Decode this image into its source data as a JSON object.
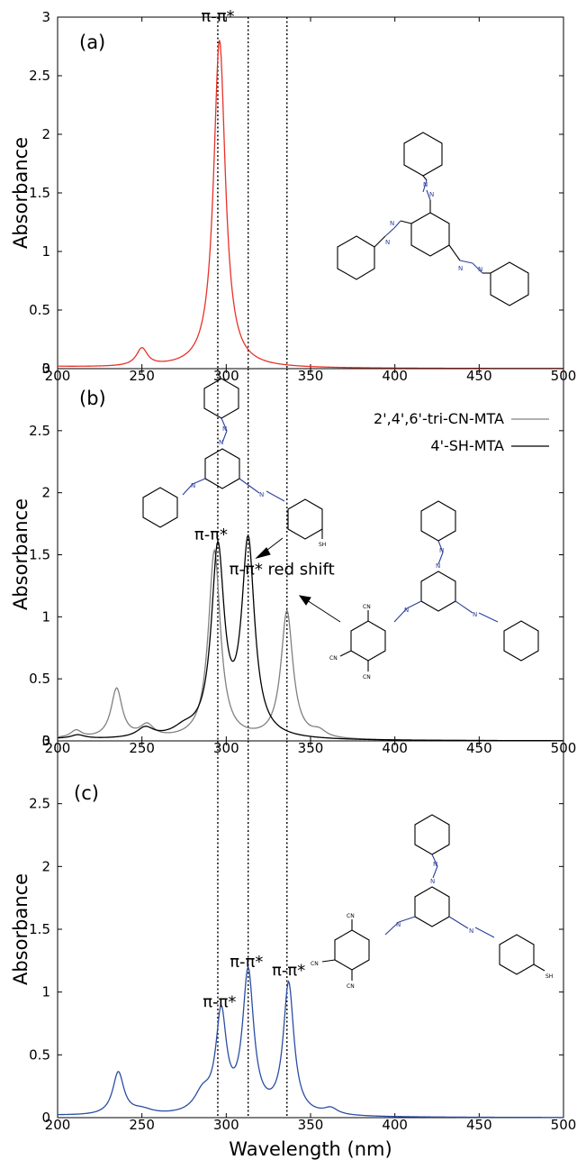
{
  "colors": {
    "panel_a": "#e8312a",
    "panel_b_tri_cn": "#808080",
    "panel_b_sh": "#000000",
    "panel_c": "#2b4ea2",
    "azo_nitrogen": "#2c3e9a"
  },
  "axes": {
    "x_ticks": [
      "200",
      "250",
      "300",
      "350",
      "400",
      "450",
      "500"
    ],
    "y_ticks": [
      "0",
      "0.5",
      "1",
      "1.5",
      "2",
      "2.5",
      "3"
    ],
    "ylabel": "Absorbance",
    "xlabel": "Wavelength (nm)"
  },
  "vlines": [
    295,
    313,
    336
  ],
  "molecule_labels": {
    "nitrogen": "N",
    "cyano": "CN",
    "thiol": "SH"
  },
  "panels": [
    {
      "label": "(a)",
      "annotations": [
        {
          "text": "π-π*",
          "x": 295,
          "y": 2.96
        }
      ]
    },
    {
      "label": "(b)",
      "annotations": [
        {
          "text": "π-π*",
          "x": 291,
          "y": 1.62
        },
        {
          "text": "π-π* red shift",
          "x": 333,
          "y": 1.34
        }
      ]
    },
    {
      "label": "(c)",
      "annotations": [
        {
          "text": "π-π*",
          "x": 296,
          "y": 0.88
        },
        {
          "text": "π-π*",
          "x": 312,
          "y": 1.2
        },
        {
          "text": "π-π*",
          "x": 337,
          "y": 1.13
        }
      ]
    }
  ],
  "legend": [
    {
      "label": "2',4',6'-tri-CN-MTA",
      "color": "#808080"
    },
    {
      "label": "4'-SH-MTA",
      "color": "#000000"
    }
  ],
  "chart_data": [
    {
      "type": "line",
      "panel": "(a)",
      "xlabel": "",
      "ylabel": "Absorbance",
      "xlim": [
        200,
        500
      ],
      "ylim": [
        0,
        3
      ],
      "series": [
        {
          "color": "#e8312a",
          "peaks": [
            [
              250,
              0.15,
              4
            ],
            [
              296,
              2.8,
              4.2
            ]
          ],
          "baseline": 0.015
        }
      ]
    },
    {
      "type": "line",
      "panel": "(b)",
      "xlabel": "",
      "ylabel": "Absorbance",
      "xlim": [
        200,
        500
      ],
      "ylim": [
        0,
        3
      ],
      "series": [
        {
          "name": "2',4',6'-tri-CN-MTA",
          "color": "#808080",
          "peaks": [
            [
              211,
              0.06,
              4
            ],
            [
              235,
              0.4,
              4
            ],
            [
              253,
              0.1,
              5
            ],
            [
              293,
              1.52,
              4.3
            ],
            [
              336,
              1.03,
              4.3
            ],
            [
              355,
              0.05,
              5
            ]
          ],
          "baseline": 0.015
        },
        {
          "name": "4'-SH-MTA",
          "color": "#000000",
          "peaks": [
            [
              212,
              0.03,
              5
            ],
            [
              252,
              0.08,
              6
            ],
            [
              275,
              0.06,
              8
            ],
            [
              295,
              1.5,
              4.6
            ],
            [
              313,
              1.56,
              4.6
            ]
          ],
          "baseline": 0.012
        }
      ]
    },
    {
      "type": "line",
      "panel": "(c)",
      "xlabel": "Wavelength (nm)",
      "ylabel": "Absorbance",
      "xlim": [
        200,
        500
      ],
      "ylim": [
        0,
        3
      ],
      "series": [
        {
          "color": "#2b4ea2",
          "peaks": [
            [
              236,
              0.34,
              4
            ],
            [
              250,
              0.04,
              8
            ],
            [
              286,
              0.15,
              6
            ],
            [
              297,
              0.78,
              3.8
            ],
            [
              313,
              1.12,
              4
            ],
            [
              337,
              1.04,
              3.8
            ],
            [
              362,
              0.05,
              5
            ]
          ],
          "baseline": 0.015
        }
      ]
    }
  ]
}
